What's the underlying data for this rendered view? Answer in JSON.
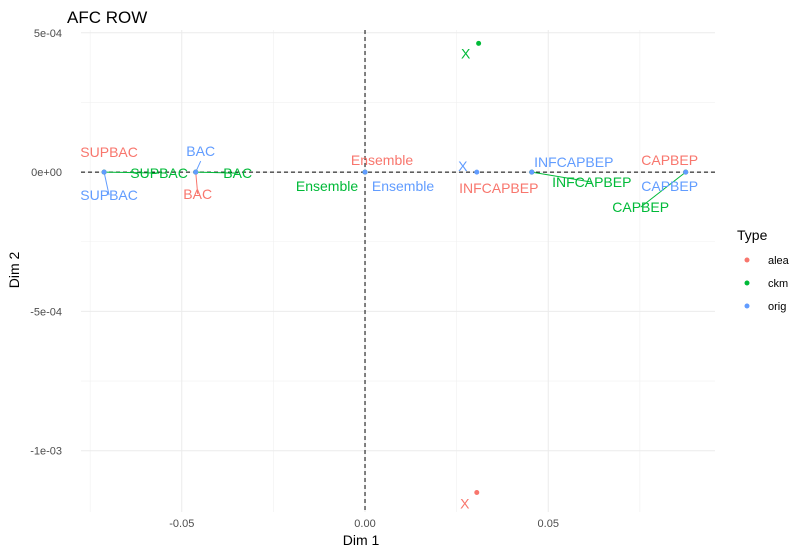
{
  "chart_data": {
    "type": "scatter",
    "title": "AFC ROW",
    "xlabel": "Dim 1",
    "ylabel": "Dim 2",
    "xlim": [
      -0.0775,
      0.0955
    ],
    "ylim": [
      -0.00122,
      0.00051
    ],
    "x_ticks": [
      -0.05,
      0.0,
      0.05
    ],
    "x_tick_labels": [
      "-0.05",
      "0.00",
      "0.05"
    ],
    "y_ticks": [
      0.0005,
      0.0,
      -0.0005,
      -0.001
    ],
    "y_tick_labels": [
      "5e-04",
      "0e+00",
      "-5e-04",
      "-1e-03"
    ],
    "grid": true,
    "reference_lines": {
      "x": 0,
      "y": 0,
      "style": "dashed"
    },
    "legend": {
      "title": "Type",
      "position": "right"
    },
    "series": [
      {
        "name": "alea",
        "color": "#F8766D",
        "points": [
          {
            "label": "SUPBAC",
            "x": -0.0712,
            "y": 0.0
          },
          {
            "label": "BAC",
            "x": -0.0462,
            "y": 0.0
          },
          {
            "label": "Ensemble",
            "x": 0.0,
            "y": 0.0
          },
          {
            "label": "INFCAPBEP",
            "x": 0.0455,
            "y": 0.0
          },
          {
            "label": "CAPBEP",
            "x": 0.0875,
            "y": 0.0
          },
          {
            "label": "X",
            "x": 0.0305,
            "y": -0.00115
          }
        ]
      },
      {
        "name": "ckm",
        "color": "#00BA38",
        "points": [
          {
            "label": "SUPBAC",
            "x": -0.0712,
            "y": 0.0
          },
          {
            "label": "BAC",
            "x": -0.0462,
            "y": 0.0
          },
          {
            "label": "Ensemble",
            "x": 0.0,
            "y": 0.0
          },
          {
            "label": "INFCAPBEP",
            "x": 0.0455,
            "y": 0.0
          },
          {
            "label": "CAPBEP",
            "x": 0.0875,
            "y": 0.0
          },
          {
            "label": "X",
            "x": 0.031,
            "y": 0.000462
          }
        ]
      },
      {
        "name": "orig",
        "color": "#619CFF",
        "points": [
          {
            "label": "SUPBAC",
            "x": -0.0712,
            "y": 0.0
          },
          {
            "label": "BAC",
            "x": -0.0462,
            "y": 0.0
          },
          {
            "label": "Ensemble",
            "x": 0.0,
            "y": 0.0
          },
          {
            "label": "INFCAPBEP",
            "x": 0.0455,
            "y": 0.0
          },
          {
            "label": "CAPBEP",
            "x": 0.0875,
            "y": 0.0
          },
          {
            "label": "X",
            "x": 0.0305,
            "y": 0.0
          }
        ]
      }
    ]
  }
}
